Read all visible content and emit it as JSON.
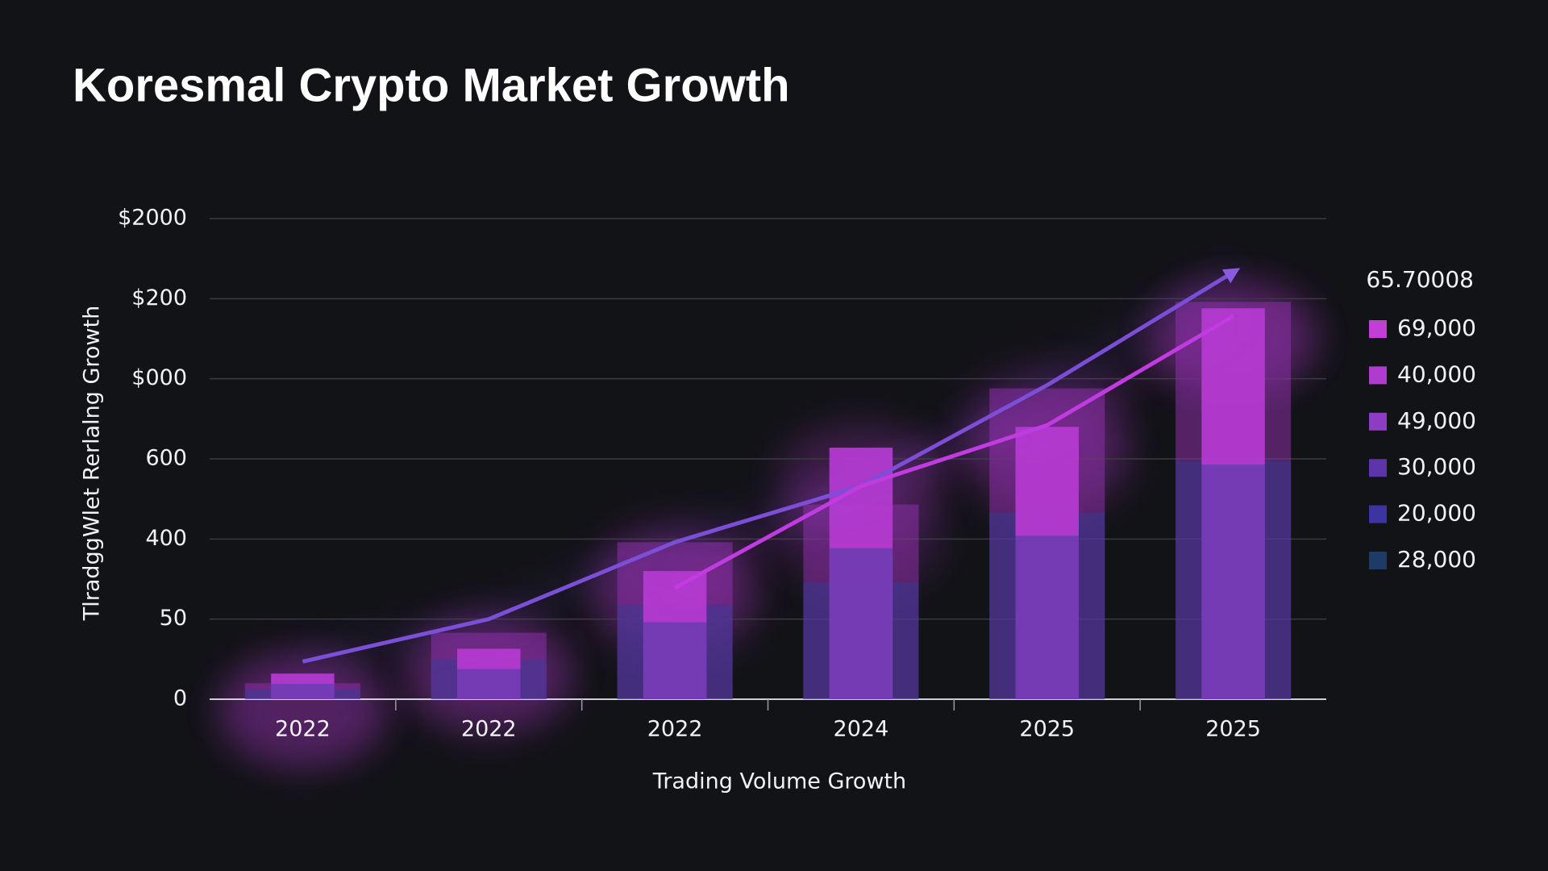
{
  "chart_data": {
    "type": "bar",
    "title": "Koresmal Crypto Market Growth",
    "x_label": "Trading Volume Growth",
    "y_label": "TlradggWlet Rerlalng Growth",
    "categories": [
      "2022",
      "2022",
      "2022",
      "2024",
      "2025",
      "2025"
    ],
    "ylim": [
      0,
      6
    ],
    "yticks": [
      {
        "value": 0,
        "label": "0"
      },
      {
        "value": 1,
        "label": "50"
      },
      {
        "value": 2,
        "label": "400"
      },
      {
        "value": 3,
        "label": "600"
      },
      {
        "value": 4,
        "label": "$000"
      },
      {
        "value": 5,
        "label": "$200"
      },
      {
        "value": 6,
        "label": "$2000"
      }
    ],
    "grid": true,
    "series": [
      {
        "kind": "bar",
        "role": "back",
        "color": "#8a2fa6",
        "values": [
          0.2,
          0.83,
          1.96,
          2.43,
          3.88,
          4.96
        ]
      },
      {
        "kind": "bar",
        "role": "front",
        "color": "#b43ad0",
        "values": [
          0.32,
          0.63,
          1.6,
          3.14,
          3.4,
          4.88
        ]
      },
      {
        "kind": "line",
        "color": "#7b4fd6",
        "values": [
          0.47,
          1.0,
          1.96,
          2.66,
          3.92,
          5.33
        ]
      },
      {
        "kind": "line",
        "color": "#c03ce0",
        "values": [
          null,
          null,
          1.39,
          2.66,
          3.42,
          4.78
        ]
      }
    ],
    "legend": {
      "title": "65.70008",
      "position": "right",
      "items": [
        {
          "label": "69,000",
          "color": "#c23fd6"
        },
        {
          "label": "40,000",
          "color": "#b03ccf"
        },
        {
          "label": "49,000",
          "color": "#8e3dc2"
        },
        {
          "label": "30,000",
          "color": "#5d35a8"
        },
        {
          "label": "20,000",
          "color": "#3c34a0"
        },
        {
          "label": "28,000",
          "color": "#1e3a66"
        }
      ]
    }
  }
}
